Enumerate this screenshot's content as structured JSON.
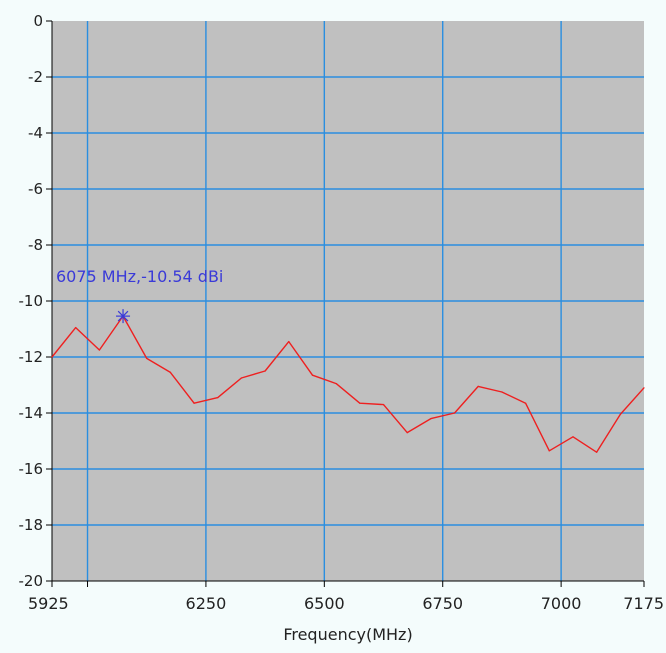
{
  "chart_data": {
    "type": "line",
    "title": "",
    "xlabel": "Frequency(MHz)",
    "ylabel": "",
    "xlim": [
      5925,
      7175
    ],
    "ylim": [
      -20,
      0
    ],
    "x_ticks": [
      5925,
      6000,
      6250,
      6500,
      6750,
      7000,
      7175
    ],
    "x_tick_labels": [
      "5925",
      "",
      "6250",
      "6500",
      "6750",
      "7000",
      "7175"
    ],
    "y_ticks": [
      0,
      -2,
      -4,
      -6,
      -8,
      -10,
      -12,
      -14,
      -16,
      -18,
      -20
    ],
    "y_tick_labels": [
      "0",
      "-2",
      "-4",
      "-6",
      "-8",
      "-10",
      "-12",
      "-14",
      "-16",
      "-18",
      "-20"
    ],
    "grid": true,
    "legend": false,
    "series": [
      {
        "color": "#ee2020",
        "x": [
          5925,
          5975,
          6025,
          6075,
          6125,
          6175,
          6225,
          6275,
          6325,
          6375,
          6425,
          6475,
          6525,
          6575,
          6625,
          6675,
          6725,
          6775,
          6825,
          6875,
          6925,
          6975,
          7025,
          7075,
          7125,
          7175
        ],
        "y": [
          -12.0,
          -10.95,
          -11.75,
          -10.54,
          -12.05,
          -12.55,
          -13.65,
          -13.45,
          -12.75,
          -12.5,
          -11.45,
          -12.65,
          -12.95,
          -13.65,
          -13.7,
          -14.7,
          -14.2,
          -14.0,
          -13.05,
          -13.25,
          -13.65,
          -15.35,
          -14.85,
          -15.4,
          -14.05,
          -13.1
        ]
      }
    ],
    "marker": {
      "x": 6075,
      "y": -10.54,
      "label": "6075 MHz,-10.54 dBi",
      "color": "#3a3ad8"
    },
    "colors": {
      "plot_bg": "#c0c0c0",
      "grid": "#2a8ee0",
      "outer_bg": "#f4fcfc",
      "axis": "#000000"
    }
  }
}
